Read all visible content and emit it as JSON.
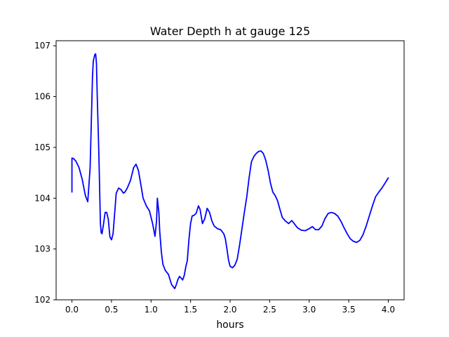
{
  "chart_data": {
    "type": "line",
    "title": "Water Depth h at gauge 125",
    "xlabel": "hours",
    "ylabel": "",
    "xlim": [
      -0.2,
      4.2
    ],
    "ylim": [
      102.0,
      107.1
    ],
    "xticks": [
      0.0,
      0.5,
      1.0,
      1.5,
      2.0,
      2.5,
      3.0,
      3.5,
      4.0
    ],
    "xtick_labels": [
      "0.0",
      "0.5",
      "1.0",
      "1.5",
      "2.0",
      "2.5",
      "3.0",
      "3.5",
      "4.0"
    ],
    "yticks": [
      102,
      103,
      104,
      105,
      106,
      107
    ],
    "ytick_labels": [
      "102",
      "103",
      "104",
      "105",
      "106",
      "107"
    ],
    "grid": false,
    "line_color": "#0000ff",
    "series": [
      {
        "x": [
          0.0,
          0.0,
          0.0,
          0.0,
          0.02,
          0.05,
          0.09,
          0.13,
          0.17,
          0.2,
          0.23,
          0.26,
          0.27,
          0.29,
          0.3,
          0.31,
          0.32,
          0.34,
          0.36,
          0.37,
          0.38,
          0.4,
          0.42,
          0.44,
          0.46,
          0.48,
          0.5,
          0.52,
          0.54,
          0.56,
          0.59,
          0.62,
          0.65,
          0.67,
          0.7,
          0.74,
          0.78,
          0.81,
          0.84,
          0.87,
          0.9,
          0.94,
          0.98,
          1.02,
          1.05,
          1.07,
          1.08,
          1.1,
          1.11,
          1.13,
          1.15,
          1.18,
          1.22,
          1.26,
          1.3,
          1.32,
          1.34,
          1.36,
          1.38,
          1.4,
          1.42,
          1.44,
          1.46,
          1.46,
          1.48,
          1.5,
          1.52,
          1.54,
          1.57,
          1.6,
          1.62,
          1.65,
          1.68,
          1.71,
          1.74,
          1.77,
          1.8,
          1.84,
          1.88,
          1.92,
          1.94,
          1.96,
          1.98,
          2.0,
          2.03,
          2.06,
          2.09,
          2.12,
          2.15,
          2.18,
          2.21,
          2.24,
          2.27,
          2.3,
          2.33,
          2.36,
          2.39,
          2.42,
          2.45,
          2.48,
          2.51,
          2.54,
          2.57,
          2.6,
          2.63,
          2.66,
          2.7,
          2.74,
          2.78,
          2.81,
          2.85,
          2.9,
          2.95,
          3.0,
          3.04,
          3.08,
          3.12,
          3.16,
          3.2,
          3.24,
          3.28,
          3.32,
          3.36,
          3.4,
          3.44,
          3.48,
          3.52,
          3.56,
          3.6,
          3.64,
          3.68,
          3.72,
          3.76,
          3.8,
          3.84,
          3.88,
          3.92,
          3.96,
          4.0
        ],
        "y": [
          104.12,
          104.6,
          104.78,
          104.79,
          104.78,
          104.73,
          104.6,
          104.37,
          104.05,
          103.93,
          104.6,
          106.4,
          106.7,
          106.83,
          106.84,
          106.65,
          106.0,
          104.9,
          103.5,
          103.32,
          103.3,
          103.5,
          103.72,
          103.72,
          103.58,
          103.24,
          103.18,
          103.3,
          103.7,
          104.1,
          104.2,
          104.17,
          104.1,
          104.12,
          104.2,
          104.35,
          104.6,
          104.67,
          104.55,
          104.28,
          104.0,
          103.85,
          103.75,
          103.5,
          103.25,
          103.55,
          104.0,
          103.7,
          103.35,
          102.95,
          102.7,
          102.58,
          102.5,
          102.3,
          102.22,
          102.3,
          102.4,
          102.46,
          102.43,
          102.39,
          102.48,
          102.65,
          102.78,
          102.8,
          103.2,
          103.5,
          103.65,
          103.66,
          103.7,
          103.85,
          103.78,
          103.5,
          103.6,
          103.8,
          103.72,
          103.55,
          103.45,
          103.4,
          103.38,
          103.3,
          103.2,
          103.0,
          102.78,
          102.66,
          102.63,
          102.68,
          102.8,
          103.08,
          103.4,
          103.72,
          104.02,
          104.4,
          104.72,
          104.82,
          104.88,
          104.92,
          104.93,
          104.88,
          104.75,
          104.55,
          104.3,
          104.12,
          104.05,
          103.95,
          103.78,
          103.62,
          103.55,
          103.5,
          103.56,
          103.5,
          103.42,
          103.37,
          103.36,
          103.4,
          103.44,
          103.38,
          103.38,
          103.45,
          103.6,
          103.7,
          103.72,
          103.7,
          103.65,
          103.55,
          103.42,
          103.3,
          103.2,
          103.15,
          103.13,
          103.17,
          103.28,
          103.45,
          103.65,
          103.85,
          104.03,
          104.12,
          104.2,
          104.3,
          104.4
        ]
      }
    ]
  }
}
